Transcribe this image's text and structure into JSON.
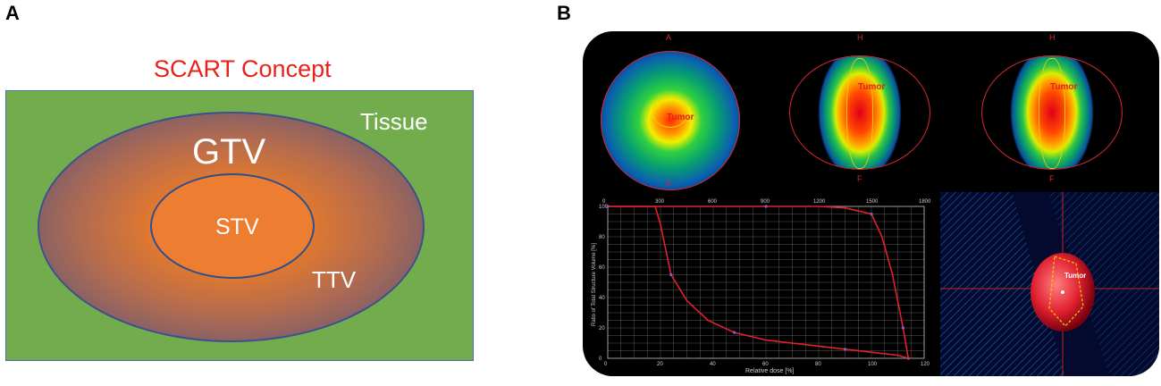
{
  "panel_a": {
    "letter": "A",
    "title": "SCART Concept",
    "labels": {
      "tissue": "Tissue",
      "gtv": "GTV",
      "stv": "STV",
      "ttv": "TTV"
    },
    "colors": {
      "tissue": "#72ac4d",
      "stv": "#ed7d31",
      "gtv_edge": "#3f5493",
      "title": "#e8221a"
    }
  },
  "panel_b": {
    "letter": "B",
    "views": [
      {
        "top_label": "A",
        "bottom_label": "P",
        "organ": "Tumor"
      },
      {
        "top_label": "H",
        "bottom_label": "F",
        "organ": "Tumor"
      },
      {
        "top_label": "H",
        "bottom_label": "F",
        "organ": "Tumor"
      }
    ],
    "dvh": {
      "type": "line",
      "xlabel": "Relative dose [%]",
      "ylabel": "Ratio of Total Structure Volume [%]",
      "x_ticks": [
        "0",
        "20",
        "40",
        "60",
        "80",
        "100",
        "120"
      ],
      "y_ticks": [
        "0",
        "20",
        "40",
        "60",
        "80",
        "100"
      ],
      "top_ticks": [
        "0",
        "300",
        "600",
        "900",
        "1200",
        "1500",
        "1800"
      ],
      "series": [
        {
          "color": "#e3202b",
          "x": [
            0,
            18,
            20,
            24,
            30,
            38,
            48,
            60,
            75,
            90,
            100,
            110,
            114
          ],
          "y": [
            100,
            100,
            88,
            55,
            38,
            25,
            17,
            12,
            9,
            6,
            4,
            2,
            0
          ]
        },
        {
          "color": "#e3202b",
          "x": [
            0,
            20,
            40,
            60,
            80,
            90,
            100,
            104,
            108,
            112,
            114
          ],
          "y": [
            100,
            100,
            100,
            100,
            100,
            99,
            95,
            80,
            55,
            20,
            0
          ]
        }
      ]
    },
    "render_label": "Tumor"
  }
}
